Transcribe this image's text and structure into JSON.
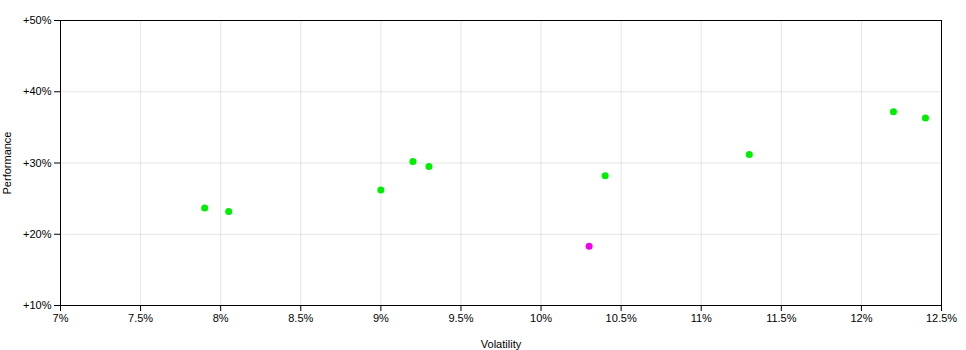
{
  "chart_data": {
    "type": "scatter",
    "xlabel": "Volatility",
    "ylabel": "Performance",
    "xlim": [
      0.07,
      0.125
    ],
    "ylim": [
      0.1,
      0.5
    ],
    "xticks": [
      {
        "value": 0.07,
        "label": "7%"
      },
      {
        "value": 0.075,
        "label": "7.5%"
      },
      {
        "value": 0.08,
        "label": "8%"
      },
      {
        "value": 0.085,
        "label": "8.5%"
      },
      {
        "value": 0.09,
        "label": "9%"
      },
      {
        "value": 0.095,
        "label": "9.5%"
      },
      {
        "value": 0.1,
        "label": "10%"
      },
      {
        "value": 0.105,
        "label": "10.5%"
      },
      {
        "value": 0.11,
        "label": "11%"
      },
      {
        "value": 0.115,
        "label": "11.5%"
      },
      {
        "value": 0.12,
        "label": "12%"
      },
      {
        "value": 0.125,
        "label": "12.5%"
      }
    ],
    "yticks": [
      {
        "value": 0.1,
        "label": "+10%"
      },
      {
        "value": 0.2,
        "label": "+20%"
      },
      {
        "value": 0.3,
        "label": "+30%"
      },
      {
        "value": 0.4,
        "label": "+40%"
      },
      {
        "value": 0.5,
        "label": "+50%"
      }
    ],
    "grid": true,
    "series": [
      {
        "color": "#00ee00",
        "x": [
          0.079,
          0.0805,
          0.09,
          0.092,
          0.093,
          0.104,
          0.113,
          0.122,
          0.124
        ],
        "values": [
          0.237,
          0.232,
          0.262,
          0.302,
          0.295,
          0.282,
          0.312,
          0.372,
          0.363
        ]
      },
      {
        "color": "#ee00ee",
        "x": [
          0.103
        ],
        "values": [
          0.183
        ]
      }
    ]
  }
}
